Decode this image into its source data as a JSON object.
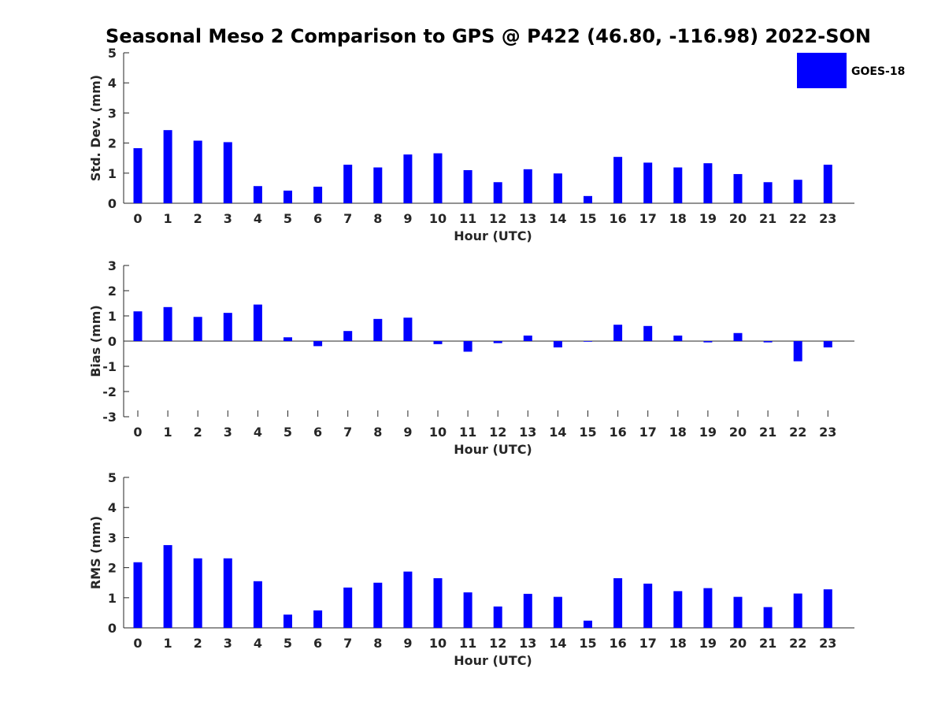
{
  "title": "Seasonal Meso 2 Comparison to GPS @ P422 (46.80, -116.98) 2022-SON",
  "legend": {
    "label": "GOES-18",
    "color": "#0000ff"
  },
  "chart_data": [
    {
      "type": "bar",
      "name": "std-dev",
      "xlabel": "Hour (UTC)",
      "ylabel": "Std. Dev. (mm)",
      "ylim": [
        0,
        5
      ],
      "yticks": [
        0,
        1,
        2,
        3,
        4,
        5
      ],
      "categories": [
        "0",
        "1",
        "2",
        "3",
        "4",
        "5",
        "6",
        "7",
        "8",
        "9",
        "10",
        "11",
        "12",
        "13",
        "14",
        "15",
        "16",
        "17",
        "18",
        "19",
        "20",
        "21",
        "22",
        "23"
      ],
      "series": [
        {
          "name": "GOES-18",
          "color": "#0000ff",
          "values": [
            1.83,
            2.43,
            2.08,
            2.03,
            0.57,
            0.42,
            0.55,
            1.28,
            1.19,
            1.62,
            1.66,
            1.1,
            0.7,
            1.13,
            0.99,
            0.24,
            1.54,
            1.35,
            1.19,
            1.33,
            0.97,
            0.7,
            0.78,
            1.28
          ]
        }
      ]
    },
    {
      "type": "bar",
      "name": "bias",
      "xlabel": "Hour (UTC)",
      "ylabel": "Bias (mm)",
      "ylim": [
        -3,
        3
      ],
      "yticks": [
        -3,
        -2,
        -1,
        0,
        1,
        2,
        3
      ],
      "categories": [
        "0",
        "1",
        "2",
        "3",
        "4",
        "5",
        "6",
        "7",
        "8",
        "9",
        "10",
        "11",
        "12",
        "13",
        "14",
        "15",
        "16",
        "17",
        "18",
        "19",
        "20",
        "21",
        "22",
        "23"
      ],
      "series": [
        {
          "name": "GOES-18",
          "color": "#0000ff",
          "values": [
            1.18,
            1.35,
            0.96,
            1.12,
            1.45,
            0.15,
            -0.2,
            0.4,
            0.88,
            0.93,
            -0.12,
            -0.42,
            -0.08,
            0.22,
            -0.25,
            -0.02,
            0.65,
            0.6,
            0.22,
            -0.05,
            0.32,
            -0.05,
            -0.8,
            -0.25
          ]
        }
      ]
    },
    {
      "type": "bar",
      "name": "rms",
      "xlabel": "Hour (UTC)",
      "ylabel": "RMS (mm)",
      "ylim": [
        0,
        5
      ],
      "yticks": [
        0,
        1,
        2,
        3,
        4,
        5
      ],
      "categories": [
        "0",
        "1",
        "2",
        "3",
        "4",
        "5",
        "6",
        "7",
        "8",
        "9",
        "10",
        "11",
        "12",
        "13",
        "14",
        "15",
        "16",
        "17",
        "18",
        "19",
        "20",
        "21",
        "22",
        "23"
      ],
      "series": [
        {
          "name": "GOES-18",
          "color": "#0000ff",
          "values": [
            2.18,
            2.75,
            2.31,
            2.31,
            1.55,
            0.44,
            0.58,
            1.34,
            1.5,
            1.87,
            1.65,
            1.18,
            0.71,
            1.13,
            1.03,
            0.24,
            1.65,
            1.47,
            1.22,
            1.32,
            1.03,
            0.69,
            1.14,
            1.28
          ]
        }
      ]
    }
  ]
}
